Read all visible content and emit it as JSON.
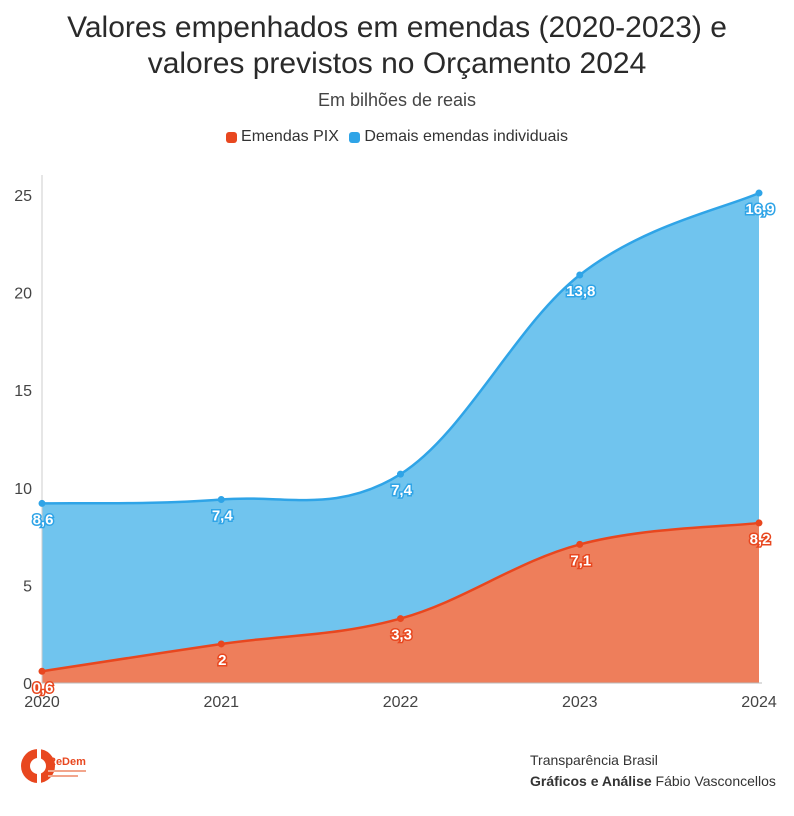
{
  "title_line1": "Valores empenhados em emendas (2020-2023) e",
  "title_line2": "valores previstos no Orçamento 2024",
  "subtitle": "Em bilhões de reais",
  "legend": [
    {
      "label": "Emendas PIX",
      "color": "#e8471f"
    },
    {
      "label": "Demais emendas individuais",
      "color": "#2fa4e7"
    }
  ],
  "chart_data": {
    "type": "area",
    "stacked": true,
    "x": [
      "2020",
      "2021",
      "2022",
      "2023",
      "2024"
    ],
    "series": [
      {
        "name": "Emendas PIX",
        "values": [
          0.6,
          2,
          3.3,
          7.1,
          8.2
        ],
        "labels": [
          "0,6",
          "2",
          "3,3",
          "7,1",
          "8,2"
        ],
        "line_color": "#e8471f",
        "fill_color": "#ee7e5b"
      },
      {
        "name": "Demais emendas individuais",
        "values": [
          8.6,
          7.4,
          7.4,
          13.8,
          16.9
        ],
        "labels": [
          "8,6",
          "7,4",
          "7,4",
          "13,8",
          "16,9"
        ],
        "line_color": "#2fa4e7",
        "fill_color": "#70c4ee"
      }
    ],
    "ylim": [
      0,
      25
    ],
    "yticks": [
      0,
      5,
      10,
      15,
      20,
      25
    ],
    "grid": false,
    "legend_position": "top-center"
  },
  "logo_text": "ReDem",
  "credits": {
    "line1": "Transparência Brasil",
    "bold": "Gráficos e Análise",
    "author": "Fábio Vasconcellos"
  }
}
